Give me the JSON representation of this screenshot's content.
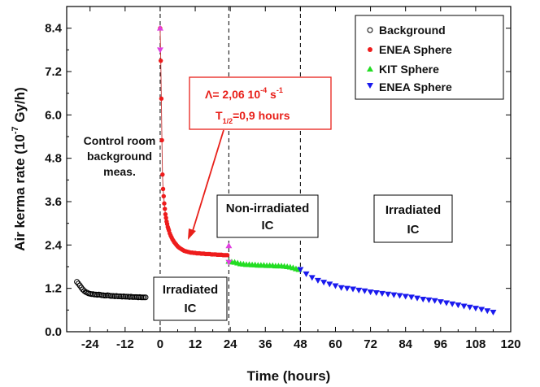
{
  "chart_data": {
    "type": "scatter",
    "xlabel": "Time (hours)",
    "ylabel_main": "Air kerma rate (10",
    "ylabel_exp": "-7",
    "ylabel_unit": " Gy/h)",
    "xlim": [
      -32,
      120
    ],
    "ylim": [
      0,
      9.0
    ],
    "x_ticks": [
      -24,
      -12,
      0,
      12,
      24,
      36,
      48,
      60,
      72,
      84,
      96,
      108,
      120
    ],
    "y_ticks": [
      0.0,
      1.2,
      2.4,
      3.6,
      4.8,
      6.0,
      7.2,
      8.4
    ],
    "y_tick_labels": [
      "0.0",
      "1.2",
      "2.4",
      "3.6",
      "4.8",
      "6.0",
      "7.2",
      "8.4"
    ],
    "vertical_lines_x": [
      0,
      23.5,
      48
    ],
    "legend_placement": "top-right",
    "series": [
      {
        "name": "Background",
        "color": "#000000",
        "marker": "open-circle",
        "x": [
          -28.5,
          -28,
          -27.5,
          -27,
          -26.5,
          -26,
          -25.5,
          -25,
          -24.5,
          -24,
          -23.5,
          -23,
          -22.5,
          -22,
          -21.5,
          -21,
          -20.5,
          -20,
          -19.5,
          -19,
          -18.5,
          -18,
          -17.5,
          -17,
          -16.5,
          -16,
          -15.5,
          -15,
          -14.5,
          -14,
          -13.5,
          -13,
          -12.5,
          -12,
          -11.5,
          -11,
          -10.5,
          -10,
          -9.5,
          -9,
          -8.5,
          -8,
          -7.5,
          -7,
          -6.5,
          -6,
          -5.5,
          -5
        ],
        "y": [
          1.38,
          1.33,
          1.28,
          1.22,
          1.17,
          1.13,
          1.1,
          1.08,
          1.06,
          1.05,
          1.04,
          1.04,
          1.03,
          1.03,
          1.02,
          1.03,
          1.02,
          1.01,
          1.01,
          1.0,
          1.0,
          1.01,
          1.0,
          0.99,
          0.99,
          0.99,
          0.98,
          0.99,
          0.98,
          0.98,
          0.98,
          0.97,
          0.98,
          0.97,
          0.97,
          0.97,
          0.96,
          0.97,
          0.96,
          0.96,
          0.96,
          0.96,
          0.95,
          0.96,
          0.95,
          0.95,
          0.95,
          0.95
        ]
      },
      {
        "name": "ENEA Sphere",
        "color": "#ee1c1c",
        "marker": "filled-circle",
        "x": [
          0.0,
          0.2,
          0.4,
          0.6,
          0.8,
          1.0,
          1.2,
          1.4,
          1.6,
          1.8,
          2.0,
          2.2,
          2.4,
          2.6,
          2.8,
          3.0,
          3.3,
          3.6,
          3.9,
          4.2,
          4.5,
          4.8,
          5.1,
          5.4,
          5.7,
          6.0,
          6.3,
          6.6,
          7.0,
          7.4,
          7.8,
          8.2,
          8.6,
          9.0,
          9.5,
          10.0,
          10.5,
          11.0,
          11.5,
          12.0,
          12.5,
          13.0,
          13.5,
          14.0,
          14.5,
          15.0,
          15.5,
          16.0,
          16.5,
          17.0,
          17.5,
          18.0,
          18.5,
          19.0,
          19.5,
          20.0,
          20.5,
          21.0,
          21.5,
          22.0,
          22.5,
          23.0
        ],
        "y": [
          8.4,
          7.5,
          6.45,
          5.3,
          4.35,
          3.95,
          3.75,
          3.55,
          3.4,
          3.25,
          3.15,
          3.05,
          2.98,
          2.9,
          2.85,
          2.8,
          2.72,
          2.66,
          2.61,
          2.56,
          2.52,
          2.48,
          2.45,
          2.42,
          2.39,
          2.36,
          2.34,
          2.32,
          2.3,
          2.28,
          2.26,
          2.24,
          2.23,
          2.22,
          2.21,
          2.2,
          2.19,
          2.19,
          2.18,
          2.18,
          2.17,
          2.17,
          2.17,
          2.16,
          2.16,
          2.16,
          2.15,
          2.15,
          2.15,
          2.15,
          2.14,
          2.14,
          2.14,
          2.14,
          2.13,
          2.13,
          2.13,
          2.13,
          2.12,
          2.12,
          2.12,
          2.12
        ]
      },
      {
        "name": "KIT Sphere",
        "color": "#22dd22",
        "marker": "filled-triangle-up",
        "x": [
          23.5,
          24.5,
          25.5,
          26.5,
          27.5,
          28.5,
          29.5,
          30.5,
          31.5,
          32.5,
          33.5,
          34.5,
          35.5,
          36.5,
          37.5,
          38.5,
          39.5,
          40.5,
          41.5,
          42.5,
          43.5,
          44.5,
          45.5,
          46.5,
          47.5
        ],
        "y": [
          1.95,
          1.93,
          1.92,
          1.9,
          1.88,
          1.87,
          1.86,
          1.86,
          1.85,
          1.85,
          1.84,
          1.84,
          1.84,
          1.83,
          1.83,
          1.83,
          1.82,
          1.82,
          1.82,
          1.81,
          1.8,
          1.79,
          1.77,
          1.74,
          1.72
        ]
      },
      {
        "name": "ENEA Sphere",
        "color": "#1a1aee",
        "marker": "filled-triangle-down",
        "x": [
          48,
          50,
          52,
          54,
          56,
          58,
          60,
          62,
          64,
          66,
          68,
          70,
          72,
          74,
          76,
          78,
          80,
          82,
          84,
          86,
          88,
          90,
          92,
          94,
          96,
          98,
          100,
          102,
          104,
          106,
          108,
          110,
          112,
          114
        ],
        "y": [
          1.72,
          1.6,
          1.5,
          1.42,
          1.37,
          1.32,
          1.27,
          1.22,
          1.2,
          1.18,
          1.15,
          1.13,
          1.1,
          1.08,
          1.06,
          1.04,
          1.02,
          1.0,
          0.98,
          0.96,
          0.93,
          0.9,
          0.88,
          0.86,
          0.83,
          0.8,
          0.77,
          0.74,
          0.71,
          0.68,
          0.65,
          0.62,
          0.58,
          0.54
        ]
      }
    ],
    "magenta_markers": [
      {
        "x": 0.0,
        "y": 8.4
      },
      {
        "x": 0.0,
        "y": 7.8
      },
      {
        "x": 23.5,
        "y": 2.38
      },
      {
        "x": 23.5,
        "y": 1.92
      }
    ],
    "annotations": {
      "control_room": [
        "Control room",
        "background",
        "meas."
      ],
      "irradiated_left": [
        "Irradiated",
        "IC"
      ],
      "non_irradiated": [
        "Non-irradiated",
        "IC"
      ],
      "irradiated_right": [
        "Irradiated",
        "IC"
      ],
      "lambda_prefix": "Λ= 2,06 10",
      "lambda_exp": "-4",
      "lambda_unit": " s",
      "lambda_unit_exp": "-1",
      "half_life_prefix": "T",
      "half_life_sub": "1/2",
      "half_life_value": "=0,9 hours"
    }
  }
}
